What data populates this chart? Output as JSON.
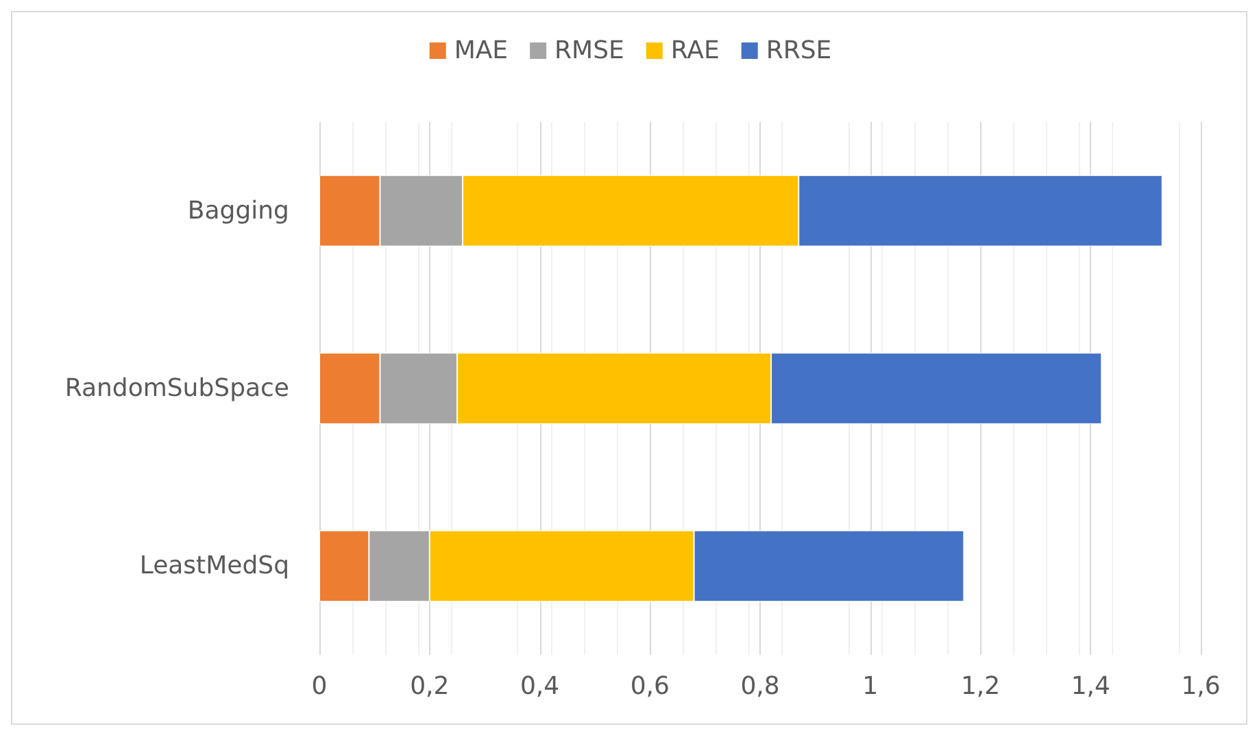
{
  "chart_data": {
    "type": "bar",
    "orientation": "horizontal",
    "stacked": true,
    "categories": [
      "Bagging",
      "RandomSubSpace",
      "LeastMedSq"
    ],
    "series": [
      {
        "name": "MAE",
        "color": "#ed7d31",
        "values": [
          0.11,
          0.11,
          0.09
        ]
      },
      {
        "name": "RMSE",
        "color": "#a5a5a5",
        "values": [
          0.15,
          0.14,
          0.11
        ]
      },
      {
        "name": "RAE",
        "color": "#ffc000",
        "values": [
          0.61,
          0.57,
          0.48
        ]
      },
      {
        "name": "RRSE",
        "color": "#4472c4",
        "values": [
          0.66,
          0.6,
          0.49
        ]
      }
    ],
    "xlim": [
      0,
      1.6
    ],
    "xticks": [
      0,
      {
        "value": 0.2,
        "label": "0,2"
      },
      {
        "value": 0.4,
        "label": "0,4"
      },
      {
        "value": 0.6,
        "label": "0,6"
      },
      {
        "value": 0.8,
        "label": "0,8"
      },
      1,
      {
        "value": 1.2,
        "label": "1,2"
      },
      {
        "value": 1.4,
        "label": "1,4"
      },
      {
        "value": 1.6,
        "label": "1,6"
      }
    ],
    "grid": "x",
    "legend": "top"
  }
}
